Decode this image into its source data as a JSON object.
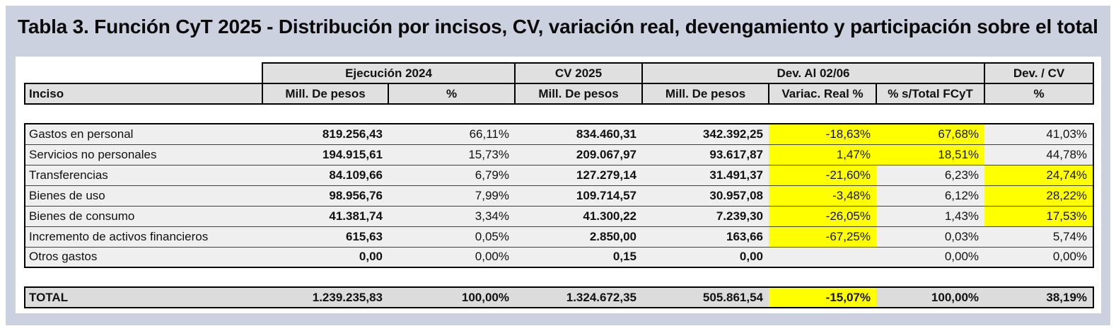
{
  "title": "Tabla 3. Función CyT 2025 - Distribución por incisos, CV, variación real, devengamiento y participación sobre el total",
  "colors": {
    "page_bg": "#ccd1e0",
    "header_bg": "#e0e0e0",
    "row_bg": "#efefef",
    "total_bg": "#dcdcdc",
    "highlight": "#ffff00"
  },
  "table": {
    "group_headers": [
      {
        "label": "Ejecución 2024",
        "span": 2
      },
      {
        "label": "CV 2025",
        "span": 1
      },
      {
        "label": "Dev. Al 02/06",
        "span": 3
      },
      {
        "label": "Dev. / CV",
        "span": 1
      }
    ],
    "columns": [
      "Inciso",
      "Mill. De pesos",
      "%",
      "Mill. De pesos",
      "Mill. De pesos",
      "Variac. Real %",
      "% s/Total FCyT",
      "%"
    ],
    "rows": [
      {
        "inciso": "Gastos en personal",
        "ejec_mill": "819.256,43",
        "ejec_pct": "66,11%",
        "cv_mill": "834.460,31",
        "dev_mill": "342.392,25",
        "variac": "-18,63%",
        "s_total": "67,68%",
        "dev_cv": "41,03%",
        "hl": [
          "variac",
          "s_total"
        ]
      },
      {
        "inciso": "Servicios no personales",
        "ejec_mill": "194.915,61",
        "ejec_pct": "15,73%",
        "cv_mill": "209.067,97",
        "dev_mill": "93.617,87",
        "variac": "1,47%",
        "s_total": "18,51%",
        "dev_cv": "44,78%",
        "hl": [
          "variac",
          "s_total"
        ]
      },
      {
        "inciso": "Transferencias",
        "ejec_mill": "84.109,66",
        "ejec_pct": "6,79%",
        "cv_mill": "127.279,14",
        "dev_mill": "31.491,37",
        "variac": "-21,60%",
        "s_total": "6,23%",
        "dev_cv": "24,74%",
        "hl": [
          "variac",
          "dev_cv"
        ]
      },
      {
        "inciso": "Bienes de uso",
        "ejec_mill": "98.956,76",
        "ejec_pct": "7,99%",
        "cv_mill": "109.714,57",
        "dev_mill": "30.957,08",
        "variac": "-3,48%",
        "s_total": "6,12%",
        "dev_cv": "28,22%",
        "hl": [
          "variac",
          "dev_cv"
        ]
      },
      {
        "inciso": "Bienes de consumo",
        "ejec_mill": "41.381,74",
        "ejec_pct": "3,34%",
        "cv_mill": "41.300,22",
        "dev_mill": "7.239,30",
        "variac": "-26,05%",
        "s_total": "1,43%",
        "dev_cv": "17,53%",
        "hl": [
          "variac",
          "dev_cv"
        ]
      },
      {
        "inciso": "Incremento de activos financieros",
        "ejec_mill": "615,63",
        "ejec_pct": "0,05%",
        "cv_mill": "2.850,00",
        "dev_mill": "163,66",
        "variac": "-67,25%",
        "s_total": "0,03%",
        "dev_cv": "5,74%",
        "hl": [
          "variac"
        ]
      },
      {
        "inciso": "Otros gastos",
        "ejec_mill": "0,00",
        "ejec_pct": "0,00%",
        "cv_mill": "0,15",
        "dev_mill": "0,00",
        "variac": "",
        "s_total": "0,00%",
        "dev_cv": "0,00%",
        "hl": []
      }
    ],
    "total": {
      "inciso": "TOTAL",
      "ejec_mill": "1.239.235,83",
      "ejec_pct": "100,00%",
      "cv_mill": "1.324.672,35",
      "dev_mill": "505.861,54",
      "variac": "-15,07%",
      "s_total": "100,00%",
      "dev_cv": "38,19%",
      "hl": [
        "variac"
      ]
    }
  }
}
